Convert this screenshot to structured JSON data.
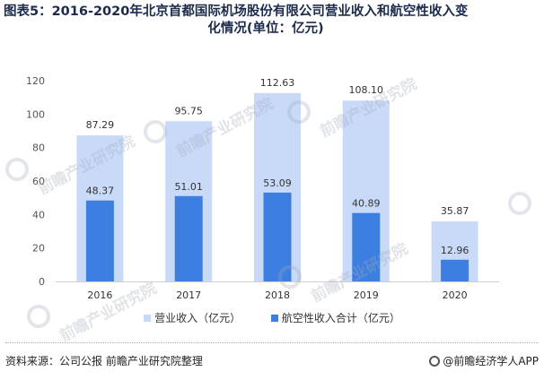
{
  "title_line1": "图表5：2016-2020年北京首都国际机场股份有限公司营业收入和航空性收入变",
  "title_line2": "化情况(单位：亿元)",
  "watermark_text": "前瞻产业研究院",
  "colors": {
    "revenue": "#c9daf8",
    "aero": "#3d7fe0",
    "axis_text": "#555555",
    "grid": "#d9d9d9",
    "title": "#1c2b4b"
  },
  "chart_data": {
    "type": "bar",
    "categories": [
      "2016",
      "2017",
      "2018",
      "2019",
      "2020"
    ],
    "series": [
      {
        "name": "营业收入（亿元）",
        "values": [
          87.29,
          95.75,
          112.63,
          108.1,
          35.87
        ]
      },
      {
        "name": "航空性收入合计（亿元）",
        "values": [
          48.37,
          51.01,
          53.09,
          40.89,
          12.96
        ]
      }
    ],
    "value_labels": [
      [
        "87.29",
        "95.75",
        "112.63",
        "108.10",
        "35.87"
      ],
      [
        "48.37",
        "51.01",
        "53.09",
        "40.89",
        "12.96"
      ]
    ],
    "yticks": [
      "0",
      "20",
      "40",
      "60",
      "80",
      "100",
      "120"
    ],
    "ylim": [
      0,
      120
    ],
    "grid": false,
    "legend_position": "bottom"
  },
  "footer": {
    "source": "资料来源：公司公报 前瞻产业研究院整理",
    "brand": "@前瞻经济学人APP"
  }
}
